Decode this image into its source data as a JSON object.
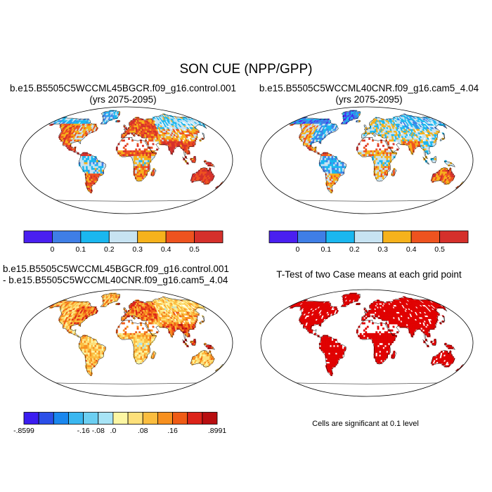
{
  "title": "SON CUE (NPP/GPP)",
  "colors": {
    "cue_levels": [
      "#4a1ff0",
      "#3f7ee6",
      "#1ab7ef",
      "#c7e3f2",
      "#f6b21c",
      "#ee531f",
      "#d5302b"
    ],
    "diff_levels": [
      "#3b1df0",
      "#2b4fe8",
      "#1a87ee",
      "#3ab7f0",
      "#6ccff2",
      "#a8e4f6",
      "#fcf6a3",
      "#fde07a",
      "#fbbd3f",
      "#f7901f",
      "#ef5b15",
      "#dc2319",
      "#b80e10"
    ],
    "ttest": "#e00000",
    "coast": "#000000"
  },
  "panels": [
    {
      "id": "case1",
      "title_lines": [
        "b.e15.B5505C5WCCML45BGCR.f09_g16.control.001",
        "(yrs 2075-2095)"
      ],
      "colorbar_ticks": [
        "0",
        "0.1",
        "0.2",
        "0.3",
        "0.4",
        "0.5"
      ]
    },
    {
      "id": "case2",
      "title_lines": [
        "b.e15.B5505C5WCCML40CNR.f09_g16.cam5_4.04",
        "(yrs 2075-2095)"
      ],
      "colorbar_ticks": [
        "0",
        "0.1",
        "0.2",
        "0.3",
        "0.4",
        "0.5"
      ]
    },
    {
      "id": "difference",
      "title_lines": [
        "b.e15.B5505C5WCCML45BGCR.f09_g16.control.001",
        "- b.e15.B5505C5WCCML40CNR.f09_g16.cam5_4.04"
      ],
      "colorbar_ticks": [
        "-.8599",
        "-.16",
        "-.08",
        ".0",
        ".08",
        ".16",
        ".8991"
      ]
    },
    {
      "id": "ttest",
      "title_lines": [
        "T-Test of two Case means at each grid point"
      ],
      "footnote": "Cells are significant at 0.1 level"
    }
  ],
  "chart_data": [
    {
      "type": "heatmap",
      "projection": "robinson",
      "title": "b.e15.B5505C5WCCML45BGCR.f09_g16.control.001 (yrs 2075-2095)",
      "levels": [
        0,
        0.1,
        0.2,
        0.3,
        0.4,
        0.5
      ],
      "regions": [
        {
          "region": "Arctic North America / Greenland margin",
          "value": 0.15
        },
        {
          "region": "Eastern North America",
          "value": 0.35
        },
        {
          "region": "Western North America",
          "value": 0.45
        },
        {
          "region": "Central America",
          "value": 0.55
        },
        {
          "region": "Amazon",
          "value": 0.2
        },
        {
          "region": "Southern South America",
          "value": 0.45
        },
        {
          "region": "Europe",
          "value": 0.45
        },
        {
          "region": "Siberia",
          "value": 0.2
        },
        {
          "region": "Central Asia",
          "value": 0.35
        },
        {
          "region": "Sahara",
          "value": null
        },
        {
          "region": "Sahel",
          "value": 0.45
        },
        {
          "region": "Central Africa",
          "value": 0.3
        },
        {
          "region": "Southern Africa",
          "value": 0.4
        },
        {
          "region": "India",
          "value": 0.55
        },
        {
          "region": "Southeast Asia",
          "value": 0.5
        },
        {
          "region": "Australia",
          "value": 0.55
        }
      ]
    },
    {
      "type": "heatmap",
      "projection": "robinson",
      "title": "b.e15.B5505C5WCCML40CNR.f09_g16.cam5_4.04 (yrs 2075-2095)",
      "levels": [
        0,
        0.1,
        0.2,
        0.3,
        0.4,
        0.5
      ],
      "regions": [
        {
          "region": "Arctic North America / Greenland margin",
          "value": 0.05
        },
        {
          "region": "Eastern North America",
          "value": 0.15
        },
        {
          "region": "Western North America",
          "value": 0.35
        },
        {
          "region": "Central America",
          "value": 0.45
        },
        {
          "region": "Amazon",
          "value": 0.15
        },
        {
          "region": "Southern South America",
          "value": 0.35
        },
        {
          "region": "Europe",
          "value": 0.25
        },
        {
          "region": "Siberia",
          "value": 0.15
        },
        {
          "region": "Central Asia",
          "value": 0.25
        },
        {
          "region": "Sahara",
          "value": null
        },
        {
          "region": "Sahel",
          "value": 0.35
        },
        {
          "region": "Central Africa",
          "value": 0.25
        },
        {
          "region": "Southern Africa",
          "value": 0.35
        },
        {
          "region": "India",
          "value": 0.4
        },
        {
          "region": "Southeast Asia",
          "value": 0.25
        },
        {
          "region": "Australia",
          "value": 0.45
        }
      ]
    },
    {
      "type": "heatmap",
      "projection": "robinson",
      "title": "b.e15.B5505C5WCCML45BGCR.f09_g16.control.001 - b.e15.B5505C5WCCML40CNR.f09_g16.cam5_4.04",
      "levels": [
        -0.8599,
        -0.16,
        -0.08,
        0.0,
        0.08,
        0.16,
        0.8991
      ],
      "range": [
        -0.8599,
        0.8991
      ],
      "regions": [
        {
          "region": "Arctic North America / Greenland margin",
          "value": 0.1
        },
        {
          "region": "Eastern North America",
          "value": 0.16
        },
        {
          "region": "Western North America",
          "value": 0.1
        },
        {
          "region": "Central America",
          "value": 0.1
        },
        {
          "region": "Amazon",
          "value": 0.08
        },
        {
          "region": "Southern South America",
          "value": 0.1
        },
        {
          "region": "Europe",
          "value": 0.16
        },
        {
          "region": "Siberia",
          "value": 0.06
        },
        {
          "region": "Central Asia",
          "value": 0.1
        },
        {
          "region": "Sahara",
          "value": null
        },
        {
          "region": "Sahel",
          "value": 0.1
        },
        {
          "region": "Central Africa",
          "value": 0.06
        },
        {
          "region": "Southern Africa",
          "value": 0.08
        },
        {
          "region": "India",
          "value": 0.16
        },
        {
          "region": "Southeast Asia",
          "value": 0.2
        },
        {
          "region": "Australia",
          "value": 0.1
        }
      ]
    },
    {
      "type": "heatmap",
      "projection": "robinson",
      "title": "T-Test of two Case means at each grid point",
      "significance_level": 0.1,
      "regions": [
        {
          "region": "Arctic North America / Greenland margin",
          "value": 1
        },
        {
          "region": "Eastern North America",
          "value": 1
        },
        {
          "region": "Western North America",
          "value": 1
        },
        {
          "region": "Central America",
          "value": 1
        },
        {
          "region": "Amazon",
          "value": 1
        },
        {
          "region": "Southern South America",
          "value": 1
        },
        {
          "region": "Europe",
          "value": 1
        },
        {
          "region": "Siberia",
          "value": 1
        },
        {
          "region": "Central Asia",
          "value": 1
        },
        {
          "region": "Sahara",
          "value": null
        },
        {
          "region": "Sahel",
          "value": 1
        },
        {
          "region": "Central Africa",
          "value": 1
        },
        {
          "region": "Southern Africa",
          "value": 1
        },
        {
          "region": "India",
          "value": 1
        },
        {
          "region": "Southeast Asia",
          "value": 1
        },
        {
          "region": "Australia",
          "value": 1
        }
      ]
    }
  ]
}
